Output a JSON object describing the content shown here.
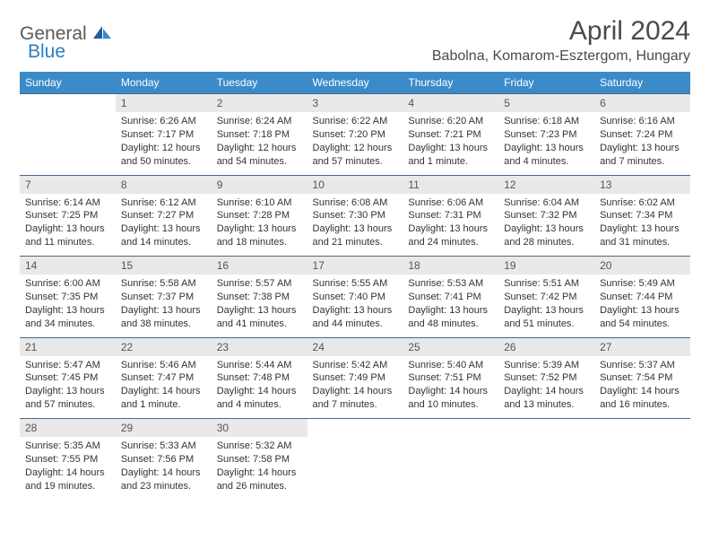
{
  "logo": {
    "text1": "General",
    "text2": "Blue"
  },
  "title": "April 2024",
  "location": "Babolna, Komarom-Esztergom, Hungary",
  "headers": [
    "Sunday",
    "Monday",
    "Tuesday",
    "Wednesday",
    "Thursday",
    "Friday",
    "Saturday"
  ],
  "colors": {
    "header_bg": "#3b8bc9",
    "header_text": "#ffffff",
    "daynum_bg": "#e9e9e9",
    "border": "#4a6a8a",
    "logo_gray": "#5a5a5a",
    "logo_blue": "#2e7cbf",
    "text": "#333333",
    "title_color": "#4a4a4a"
  },
  "fonts": {
    "title_size": 30,
    "location_size": 16,
    "header_size": 12,
    "daynum_size": 12,
    "cell_size": 11
  },
  "weeks": [
    {
      "nums": [
        "",
        "1",
        "2",
        "3",
        "4",
        "5",
        "6"
      ],
      "cells": [
        "",
        "Sunrise: 6:26 AM\nSunset: 7:17 PM\nDaylight: 12 hours and 50 minutes.",
        "Sunrise: 6:24 AM\nSunset: 7:18 PM\nDaylight: 12 hours and 54 minutes.",
        "Sunrise: 6:22 AM\nSunset: 7:20 PM\nDaylight: 12 hours and 57 minutes.",
        "Sunrise: 6:20 AM\nSunset: 7:21 PM\nDaylight: 13 hours and 1 minute.",
        "Sunrise: 6:18 AM\nSunset: 7:23 PM\nDaylight: 13 hours and 4 minutes.",
        "Sunrise: 6:16 AM\nSunset: 7:24 PM\nDaylight: 13 hours and 7 minutes."
      ]
    },
    {
      "nums": [
        "7",
        "8",
        "9",
        "10",
        "11",
        "12",
        "13"
      ],
      "cells": [
        "Sunrise: 6:14 AM\nSunset: 7:25 PM\nDaylight: 13 hours and 11 minutes.",
        "Sunrise: 6:12 AM\nSunset: 7:27 PM\nDaylight: 13 hours and 14 minutes.",
        "Sunrise: 6:10 AM\nSunset: 7:28 PM\nDaylight: 13 hours and 18 minutes.",
        "Sunrise: 6:08 AM\nSunset: 7:30 PM\nDaylight: 13 hours and 21 minutes.",
        "Sunrise: 6:06 AM\nSunset: 7:31 PM\nDaylight: 13 hours and 24 minutes.",
        "Sunrise: 6:04 AM\nSunset: 7:32 PM\nDaylight: 13 hours and 28 minutes.",
        "Sunrise: 6:02 AM\nSunset: 7:34 PM\nDaylight: 13 hours and 31 minutes."
      ]
    },
    {
      "nums": [
        "14",
        "15",
        "16",
        "17",
        "18",
        "19",
        "20"
      ],
      "cells": [
        "Sunrise: 6:00 AM\nSunset: 7:35 PM\nDaylight: 13 hours and 34 minutes.",
        "Sunrise: 5:58 AM\nSunset: 7:37 PM\nDaylight: 13 hours and 38 minutes.",
        "Sunrise: 5:57 AM\nSunset: 7:38 PM\nDaylight: 13 hours and 41 minutes.",
        "Sunrise: 5:55 AM\nSunset: 7:40 PM\nDaylight: 13 hours and 44 minutes.",
        "Sunrise: 5:53 AM\nSunset: 7:41 PM\nDaylight: 13 hours and 48 minutes.",
        "Sunrise: 5:51 AM\nSunset: 7:42 PM\nDaylight: 13 hours and 51 minutes.",
        "Sunrise: 5:49 AM\nSunset: 7:44 PM\nDaylight: 13 hours and 54 minutes."
      ]
    },
    {
      "nums": [
        "21",
        "22",
        "23",
        "24",
        "25",
        "26",
        "27"
      ],
      "cells": [
        "Sunrise: 5:47 AM\nSunset: 7:45 PM\nDaylight: 13 hours and 57 minutes.",
        "Sunrise: 5:46 AM\nSunset: 7:47 PM\nDaylight: 14 hours and 1 minute.",
        "Sunrise: 5:44 AM\nSunset: 7:48 PM\nDaylight: 14 hours and 4 minutes.",
        "Sunrise: 5:42 AM\nSunset: 7:49 PM\nDaylight: 14 hours and 7 minutes.",
        "Sunrise: 5:40 AM\nSunset: 7:51 PM\nDaylight: 14 hours and 10 minutes.",
        "Sunrise: 5:39 AM\nSunset: 7:52 PM\nDaylight: 14 hours and 13 minutes.",
        "Sunrise: 5:37 AM\nSunset: 7:54 PM\nDaylight: 14 hours and 16 minutes."
      ]
    },
    {
      "nums": [
        "28",
        "29",
        "30",
        "",
        "",
        "",
        ""
      ],
      "cells": [
        "Sunrise: 5:35 AM\nSunset: 7:55 PM\nDaylight: 14 hours and 19 minutes.",
        "Sunrise: 5:33 AM\nSunset: 7:56 PM\nDaylight: 14 hours and 23 minutes.",
        "Sunrise: 5:32 AM\nSunset: 7:58 PM\nDaylight: 14 hours and 26 minutes.",
        "",
        "",
        "",
        ""
      ]
    }
  ]
}
